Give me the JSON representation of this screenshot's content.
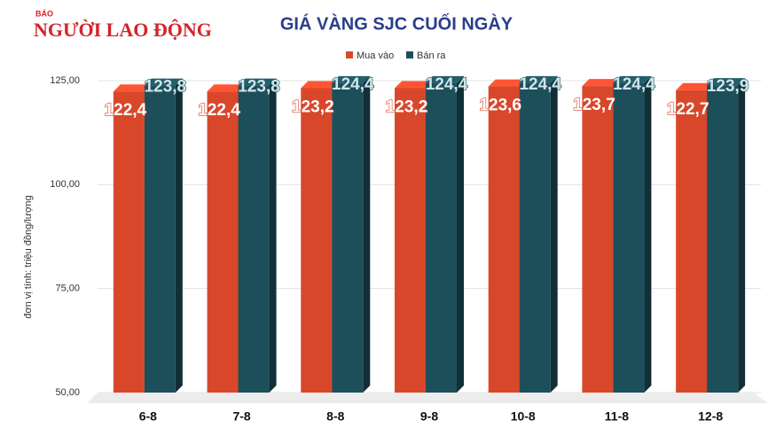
{
  "logo": {
    "small": "BÁO",
    "main": "NGƯỜI LAO ĐỘNG"
  },
  "chart_data": {
    "type": "bar3d",
    "title": "GIÁ VÀNG SJC CUỐI NGÀY",
    "y_label": "đơn vị tính: triệu đồng/lượng",
    "categories": [
      "6-8",
      "7-8",
      "8-8",
      "9-8",
      "10-8",
      "11-8",
      "12-8"
    ],
    "series": [
      {
        "name": "Mua vào",
        "color": "#d9472b",
        "values": [
          122.4,
          122.4,
          123.2,
          123.2,
          123.6,
          123.7,
          122.7
        ],
        "value_labels": [
          "122,4",
          "122,4",
          "123,2",
          "123,2",
          "123,6",
          "123,7",
          "122,7"
        ]
      },
      {
        "name": "Bán ra",
        "color": "#1d4f5a",
        "values": [
          123.8,
          123.8,
          124.4,
          124.4,
          124.4,
          124.4,
          123.9
        ],
        "value_labels": [
          "123,8",
          "123,8",
          "124,4",
          "124,4",
          "124,4",
          "124,4",
          "123,9"
        ]
      }
    ],
    "ylim": [
      50,
      125
    ],
    "yticks": [
      {
        "value": 50,
        "label": "50,00"
      },
      {
        "value": 75,
        "label": "75,00"
      },
      {
        "value": 100,
        "label": "100,00"
      },
      {
        "value": 125,
        "label": "125,00"
      }
    ],
    "grid": true,
    "legend": "top"
  }
}
